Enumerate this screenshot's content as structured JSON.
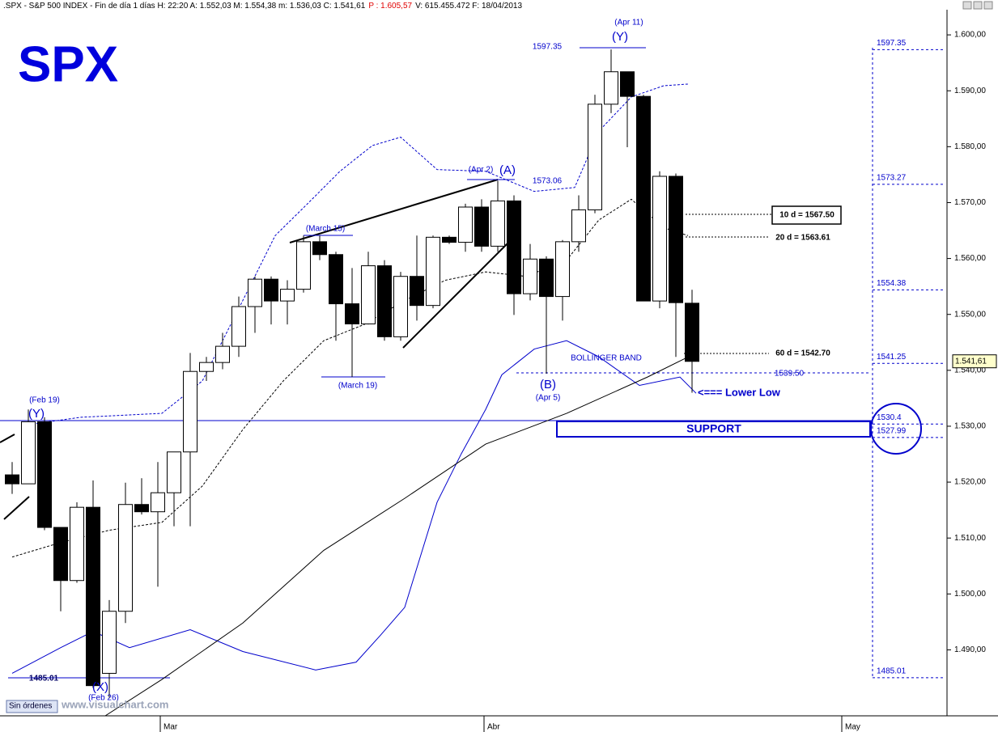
{
  "chart_data": {
    "type": "candlestick",
    "header": [
      ".SPX - S&P 500 INDEX - Fin de día 1 días  H: 22:20  A: 1.552,03  M: 1.554,38  m: 1.536,03  C: 1.541,61",
      "P : 1.605,57",
      "V: 615.455.472  F: 18/04/2013"
    ],
    "categories": [
      null,
      null,
      null,
      null,
      null,
      null,
      null,
      null,
      null,
      null,
      null,
      null,
      null,
      null,
      null,
      null,
      null,
      null,
      null,
      null,
      null,
      null,
      null,
      null,
      null,
      null,
      null,
      null,
      null,
      null,
      null,
      null,
      null,
      null,
      null,
      null,
      null,
      null,
      null,
      null,
      null,
      null,
      null
    ],
    "open": [
      1521.3,
      1519.7,
      1530.8,
      1511.9,
      1502.4,
      1515.5,
      1485.8,
      1496.9,
      1516.0,
      1514.7,
      1518.1,
      1525.4,
      1539.8,
      1541.4,
      1544.3,
      1551.4,
      1556.3,
      1552.4,
      1554.5,
      1563.0,
      1560.7,
      1551.9,
      1548.3,
      1558.7,
      1546.0,
      1556.8,
      1551.6,
      1563.8,
      1562.9,
      1569.2,
      1562.2,
      1570.3,
      1553.7,
      1559.9,
      1553.2,
      1563.0,
      1568.7,
      1587.6,
      1593.4,
      1589.0,
      1552.4,
      1574.7,
      1552.0
    ],
    "high": [
      1523.6,
      1533.0,
      1531.6,
      1511.9,
      1516.4,
      1520.3,
      1498.9,
      1519.9,
      1520.7,
      1523.6,
      1525.4,
      1543.1,
      1542.4,
      1546.7,
      1553.2,
      1556.8,
      1556.8,
      1556.1,
      1564.1,
      1564.1,
      1561.2,
      1558.3,
      1561.2,
      1559.7,
      1557.6,
      1564.1,
      1564.1,
      1564.1,
      1569.8,
      1570.6,
      1573.9,
      1571.3,
      1562.6,
      1560.4,
      1563.3,
      1571.3,
      1589.3,
      1597.4,
      1593.4,
      1589.3,
      1575.6,
      1575.2,
      1554.4
    ],
    "low": [
      1517.9,
      1519.7,
      1511.4,
      1496.9,
      1502.0,
      1483.2,
      1481.5,
      1494.8,
      1514.2,
      1501.3,
      1512.1,
      1512.1,
      1538.1,
      1540.2,
      1542.4,
      1546.7,
      1548.2,
      1548.2,
      1553.9,
      1559.7,
      1545.3,
      1538.8,
      1548.2,
      1545.3,
      1545.3,
      1548.9,
      1551.1,
      1562.6,
      1561.2,
      1561.2,
      1561.2,
      1549.9,
      1552.5,
      1539.4,
      1548.9,
      1561.2,
      1568.1,
      1586.0,
      1579.9,
      1552.4,
      1551.1,
      1542.4,
      1536.0
    ],
    "close": [
      1519.7,
      1530.8,
      1511.9,
      1502.4,
      1515.5,
      1483.6,
      1496.9,
      1516.0,
      1514.7,
      1518.1,
      1525.4,
      1539.8,
      1541.4,
      1544.3,
      1551.4,
      1556.3,
      1552.4,
      1554.5,
      1563.0,
      1560.7,
      1551.9,
      1548.3,
      1558.7,
      1546.0,
      1556.8,
      1551.6,
      1563.8,
      1562.9,
      1569.2,
      1562.2,
      1570.3,
      1553.7,
      1559.9,
      1553.2,
      1563.0,
      1568.7,
      1587.6,
      1593.4,
      1589.0,
      1552.4,
      1574.7,
      1552.1,
      1541.6
    ],
    "up_color": "#ffffff",
    "down_color": "#000000",
    "lines": [
      {
        "color": "#0000cc",
        "dash": true,
        "x": [
          1.25,
          4.25,
          9.25,
          11.75,
          14.25,
          16.25,
          18.25,
          20.25,
          22.25,
          24,
          26.25,
          29.25,
          32.25,
          34.75,
          36.25,
          38.25,
          40.25,
          41.75
        ],
        "values": [
          1530.4,
          1531.6,
          1532.3,
          1538.1,
          1552.5,
          1564.1,
          1569.8,
          1575.6,
          1580.2,
          1581.7,
          1575.9,
          1575.6,
          1572.0,
          1572.7,
          1582.8,
          1588.9,
          1590.9,
          1591.2
        ]
      },
      {
        "color": "#0000cc",
        "dash": false,
        "x": [
          0,
          3,
          5,
          7.25,
          11,
          14.25,
          18.75,
          21.25,
          22.75,
          24.25,
          26.25,
          27.75,
          29.25,
          30.25,
          32.25,
          34.25,
          36.25,
          38.75,
          41.25,
          42.25
        ],
        "values": [
          1485.8,
          1490.4,
          1493.3,
          1490.4,
          1493.6,
          1489.7,
          1486.4,
          1487.8,
          1492.6,
          1497.6,
          1516.4,
          1525.1,
          1533.0,
          1539.2,
          1543.8,
          1545.3,
          1542.4,
          1537.3,
          1538.8,
          1535.9
        ]
      },
      {
        "color": "#000000",
        "dash": false,
        "x": [
          5.75,
          9.25,
          14.25,
          19.25,
          24.25,
          29.25,
          34.25,
          39.25,
          42.25
        ],
        "values": [
          1478.2,
          1484.7,
          1494.8,
          1507.8,
          1517.1,
          1526.8,
          1532.3,
          1538.8,
          1543.1
        ]
      },
      {
        "color": "#000000",
        "dash": true,
        "x": [
          0,
          3,
          6,
          9.25,
          11.75,
          14.25,
          16.75,
          19.25,
          21.75,
          24.25,
          26.75,
          29.25,
          31.75,
          34.25,
          36.25,
          38.25,
          40.25,
          41.75
        ],
        "values": [
          1506.6,
          1509.2,
          1511.4,
          1512.8,
          1519.3,
          1529.4,
          1538.1,
          1545.3,
          1548.2,
          1552.5,
          1556.1,
          1557.6,
          1556.8,
          1559.7,
          1566.9,
          1570.6,
          1565.5,
          1564.1
        ]
      }
    ],
    "xlim": [
      -0.75,
      57.75
    ],
    "xticks": [
      {
        "value": 9.15,
        "label": "Mar"
      },
      {
        "value": 29.15,
        "label": "Abr"
      },
      {
        "value": 51.25,
        "label": "May"
      }
    ],
    "ylim": [
      1478.2,
      1604.5
    ],
    "yticks": [
      {
        "value": 1490,
        "label": "1.490,00"
      },
      {
        "value": 1500,
        "label": "1.500,00"
      },
      {
        "value": 1510,
        "label": "1.510,00"
      },
      {
        "value": 1520,
        "label": "1.520,00"
      },
      {
        "value": 1530,
        "label": "1.530,00"
      },
      {
        "value": 1540,
        "label": "1.540,00"
      },
      {
        "value": 1550,
        "label": "1.550,00"
      },
      {
        "value": 1560,
        "label": "1.560,00"
      },
      {
        "value": 1570,
        "label": "1.570,00"
      },
      {
        "value": 1580,
        "label": "1.580,00"
      },
      {
        "value": 1590,
        "label": "1.590,00"
      },
      {
        "value": 1600,
        "label": "1.600,00"
      }
    ],
    "last_price": {
      "value": 1541.61,
      "label": "1.541,61"
    },
    "levels": [
      1597.35,
      1573.27,
      1554.38,
      1541.25,
      1530.4,
      1527.99,
      1485.01
    ],
    "annotations": [
      "SPX",
      "(Apr 11)",
      "(Y)",
      "1597.35",
      "(Apr 2)",
      "(A)",
      "1573.06",
      "(March 15)",
      "(March 19)",
      "(B)",
      "(Apr 5)",
      "BOLLINGER BAND",
      "1539.50",
      "<=== Lower Low",
      "SUPPORT",
      "(Feb 19)",
      "(Y)",
      "1485.01",
      "(X)",
      "(Feb 26)",
      "10 d = 1567.50",
      "20 d = 1563.61",
      "60 d = 1542.70"
    ],
    "footer": [
      "Sin órdenes",
      "www.visualchart.com"
    ]
  }
}
